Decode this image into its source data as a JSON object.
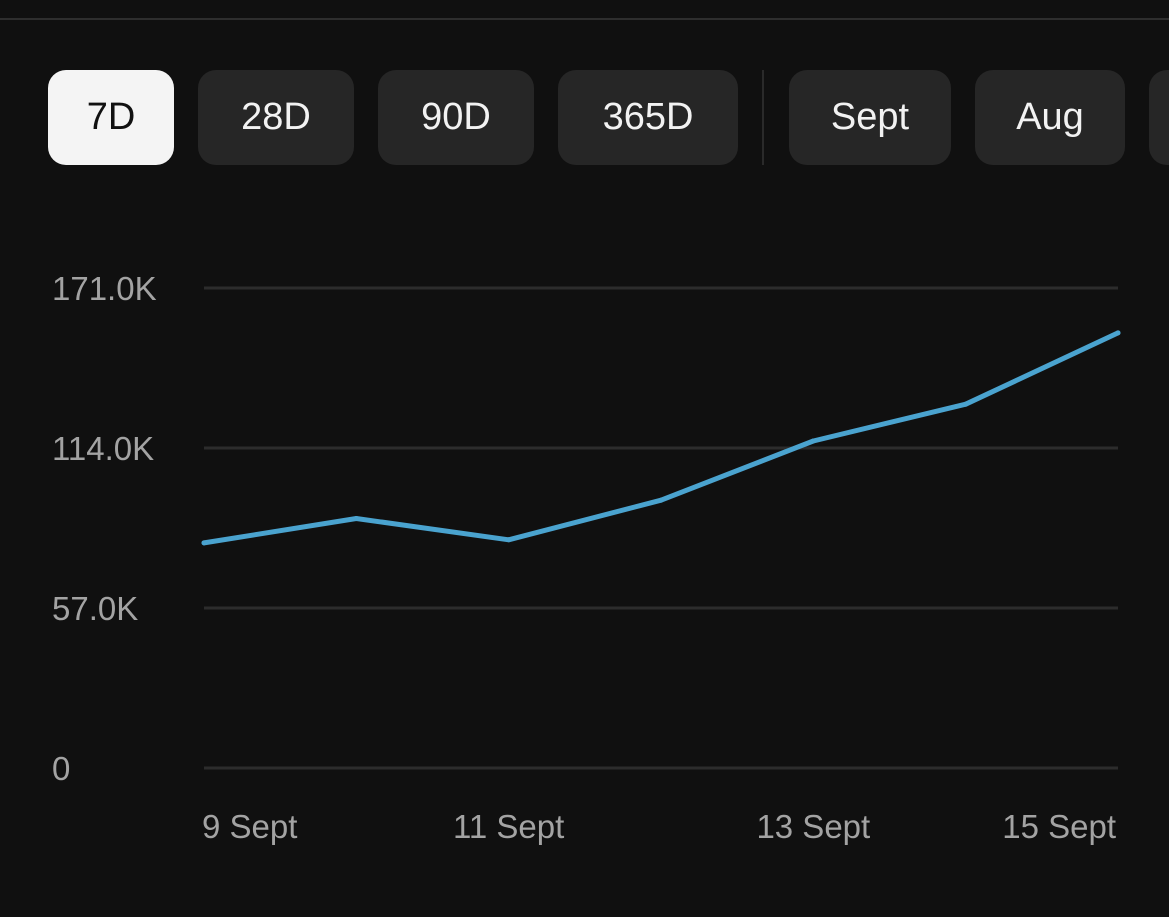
{
  "filters": {
    "chips": [
      {
        "label": "7D",
        "active": true
      },
      {
        "label": "28D",
        "active": false
      },
      {
        "label": "90D",
        "active": false
      },
      {
        "label": "365D",
        "active": false
      }
    ],
    "month_chips": [
      {
        "label": "Sept"
      },
      {
        "label": "Aug"
      }
    ]
  },
  "colors": {
    "line": "#4aa3cf",
    "grid": "#2c2c2c",
    "chip_bg": "#262626",
    "chip_active_bg": "#f4f4f4"
  },
  "chart_data": {
    "type": "line",
    "x": [
      "9 Sept",
      "10 Sept",
      "11 Sept",
      "12 Sept",
      "13 Sept",
      "14 Sept",
      "15 Sept"
    ],
    "x_tick_labels": [
      "9 Sept",
      "11 Sept",
      "13 Sept",
      "15 Sept"
    ],
    "y_ticks": [
      0,
      57000,
      114000,
      171000
    ],
    "y_tick_labels": [
      "0",
      "57.0K",
      "114.0K",
      "171.0K"
    ],
    "ylim": [
      0,
      171000
    ],
    "grid": true,
    "series": [
      {
        "values": [
          80200,
          88900,
          81300,
          95400,
          116500,
          129600,
          155000
        ]
      }
    ]
  }
}
